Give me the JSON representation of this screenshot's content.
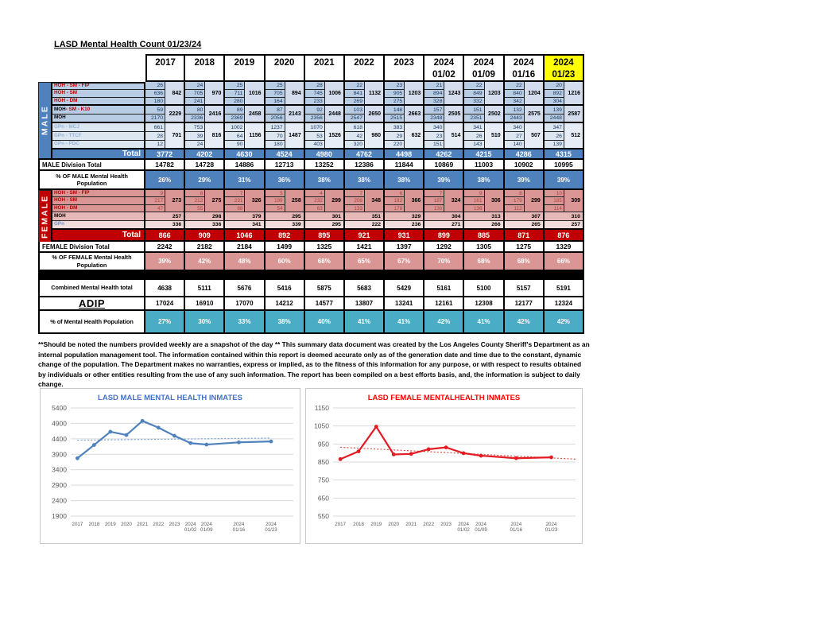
{
  "title": "LASD Mental Health Count 01/23/24",
  "columns": [
    "2017",
    "2018",
    "2019",
    "2020",
    "2021",
    "2022",
    "2023",
    "2024 01/02",
    "2024 01/09",
    "2024 01/16",
    "2024 01/23"
  ],
  "table": {
    "male": {
      "band": "MALE",
      "rows": {
        "fip": {
          "label": "HOH - SM - FIP",
          "values": [
            26,
            24,
            25,
            25,
            28,
            22,
            23,
            21,
            22,
            22,
            20
          ]
        },
        "sm": {
          "label": "HOH - SM",
          "values": [
            636,
            705,
            711,
            705,
            745,
            841,
            905,
            894,
            849,
            840,
            892
          ]
        },
        "dm": {
          "label": "HOH - DM",
          "values": [
            180,
            241,
            280,
            164,
            233,
            269,
            275,
            328,
            332,
            342,
            304
          ]
        },
        "hoh_merged": [
          842,
          970,
          1016,
          894,
          1006,
          1132,
          1203,
          1243,
          1203,
          1204,
          1216
        ],
        "k10": {
          "label_black": "MOH",
          "label_red": " - SM - K10",
          "values": [
            59,
            80,
            89,
            87,
            92,
            103,
            148,
            157,
            151,
            132,
            139
          ]
        },
        "moh": {
          "label": "MOH",
          "values": [
            2170,
            2336,
            2369,
            2056,
            2356,
            2547,
            2515,
            2348,
            2351,
            2443,
            2448
          ]
        },
        "moh_merged": [
          2229,
          2416,
          2458,
          2143,
          2448,
          2650,
          2663,
          2505,
          2502,
          2575,
          2587
        ],
        "mcj": {
          "label": "GPn - MCJ",
          "values": [
            661,
            753,
            1002,
            1237,
            1070,
            618,
            383,
            340,
            341,
            340,
            347
          ]
        },
        "ttcf": {
          "label": "GPn - TTCF",
          "values": [
            28,
            39,
            64,
            70,
            53,
            42,
            29,
            23,
            26,
            27,
            26
          ]
        },
        "pdc": {
          "label": "GPn - PDC",
          "values": [
            12,
            24,
            90,
            180,
            403,
            320,
            220,
            151,
            143,
            140,
            139
          ]
        },
        "gpn_merged": [
          701,
          816,
          1156,
          1487,
          1526,
          980,
          632,
          514,
          510,
          507,
          512
        ]
      },
      "total": {
        "label": "Total",
        "values": [
          3772,
          4202,
          4630,
          4524,
          4980,
          4762,
          4498,
          4262,
          4215,
          4286,
          4315
        ]
      },
      "division": {
        "label": "MALE Division Total",
        "values": [
          14782,
          14728,
          14886,
          12713,
          13252,
          12386,
          11844,
          10869,
          11003,
          10902,
          10995
        ]
      },
      "pct": {
        "label": "% OF MALE Mental Health Population",
        "values": [
          "26%",
          "29%",
          "31%",
          "36%",
          "38%",
          "38%",
          "38%",
          "39%",
          "38%",
          "39%",
          "39%"
        ]
      }
    },
    "female": {
      "band": "FEMALE",
      "rows": {
        "fip": {
          "label": "HOH - SM - FIP",
          "values": [
            9,
            8,
            7,
            5,
            4,
            7,
            6,
            7,
            9,
            8,
            10
          ]
        },
        "sm": {
          "label": "HOH - SM",
          "values": [
            217,
            212,
            231,
            199,
            232,
            208,
            182,
            187,
            161,
            179,
            185
          ]
        },
        "dm": {
          "label": "HOH - DM",
          "values": [
            47,
            55,
            88,
            54,
            63,
            133,
            178,
            130,
            136,
            112,
            114
          ]
        },
        "hoh_merged": [
          273,
          275,
          326,
          258,
          299,
          348,
          366,
          324,
          306,
          299,
          309
        ],
        "moh": {
          "label": "MOH",
          "values": [
            257,
            298,
            379,
            295,
            301,
            351,
            329,
            304,
            313,
            307,
            310
          ]
        },
        "gpn": {
          "label": "GPn",
          "values": [
            336,
            336,
            341,
            339,
            295,
            222,
            236,
            271,
            266,
            265,
            257
          ]
        }
      },
      "total": {
        "label": "Total",
        "values": [
          866,
          909,
          1046,
          892,
          895,
          921,
          931,
          899,
          885,
          871,
          876
        ]
      },
      "division": {
        "label": "FEMALE Division Total",
        "values": [
          2242,
          2182,
          2184,
          1499,
          1325,
          1421,
          1397,
          1292,
          1305,
          1275,
          1329
        ]
      },
      "pct": {
        "label": "% OF FEMALE Mental Health Population",
        "values": [
          "39%",
          "42%",
          "48%",
          "60%",
          "68%",
          "65%",
          "67%",
          "70%",
          "68%",
          "68%",
          "66%"
        ]
      }
    },
    "combined": {
      "label": "Combined Mental Health total",
      "values": [
        4638,
        5111,
        5676,
        5416,
        5875,
        5683,
        5429,
        5161,
        5100,
        5157,
        5191
      ]
    },
    "adip": {
      "label": "ADIP",
      "values": [
        17024,
        16910,
        17070,
        14212,
        14577,
        13807,
        13241,
        12161,
        12308,
        12177,
        12324
      ]
    },
    "pct_mh": {
      "label": "% of Mental Health Population",
      "values": [
        "27%",
        "30%",
        "33%",
        "38%",
        "40%",
        "41%",
        "41%",
        "42%",
        "41%",
        "42%",
        "42%"
      ]
    }
  },
  "footnote": "**Should be noted the numbers provided weekly are a snapshot of the day ** This summary data document was created by the Los Angeles County Sheriff's Department as an internal population management tool.  The information contained within this report is deemed accurate only as of the generation date and time due to the constant, dynamic change of the population.  The Department makes no warranties, express or implied, as to the fitness of this information for any purpose, or with respect to results obtained by individuals or other entities resulting from the use of any such information.  The report has been compiled on a best efforts basis, and, the information is subject to daily change.",
  "chart_data": [
    {
      "type": "line",
      "title": "LASD MALE MENTAL HEALTH INMATES",
      "categories": [
        "2017",
        "2018",
        "2019",
        "2020",
        "2021",
        "2022",
        "2023",
        "2024 01/02",
        "2024 01/09",
        "2024 01/16",
        "2024 01/23"
      ],
      "values": [
        3772,
        4202,
        4630,
        4524,
        4980,
        4762,
        4498,
        4262,
        4215,
        4286,
        4315
      ],
      "ylim": [
        1900,
        5400
      ],
      "ytick_step": 500,
      "grid": true,
      "legend": false,
      "line_color": "#4F81BD",
      "title_color": "#4472C4",
      "trend_color": "#7FA7D6",
      "trendline": {
        "start": 4355,
        "end": 4425
      },
      "trend_extends_right": false
    },
    {
      "type": "line",
      "title": "LASD FEMALE MENTALHEALTH INMATES",
      "categories": [
        "2017",
        "2018",
        "2019",
        "2020",
        "2021",
        "2022",
        "2023",
        "2024 01/02",
        "2024 01/09",
        "2024 01/16",
        "2024 01/23"
      ],
      "values": [
        866,
        909,
        1046,
        892,
        895,
        921,
        931,
        899,
        885,
        871,
        876
      ],
      "ylim": [
        550,
        1150
      ],
      "ytick_step": 100,
      "grid": true,
      "legend": false,
      "line_color": "#E31B23",
      "title_color": "#FF0000",
      "trend_color": "#D94F43",
      "trendline": {
        "start": 932,
        "end": 866
      },
      "trend_extends_right": true
    }
  ],
  "colors": {
    "male_accent": "#4F81BD",
    "male_cell": "#B8CCE4",
    "male_cell_light": "#DCE6F1",
    "female_accent": "#C00000",
    "female_cell": "#D99694",
    "female_cell_mid": "#E6B8B7",
    "female_cell_light": "#F2DCDB",
    "teal": "#4BACC6",
    "highlight_yellow": "#FFFF00"
  }
}
